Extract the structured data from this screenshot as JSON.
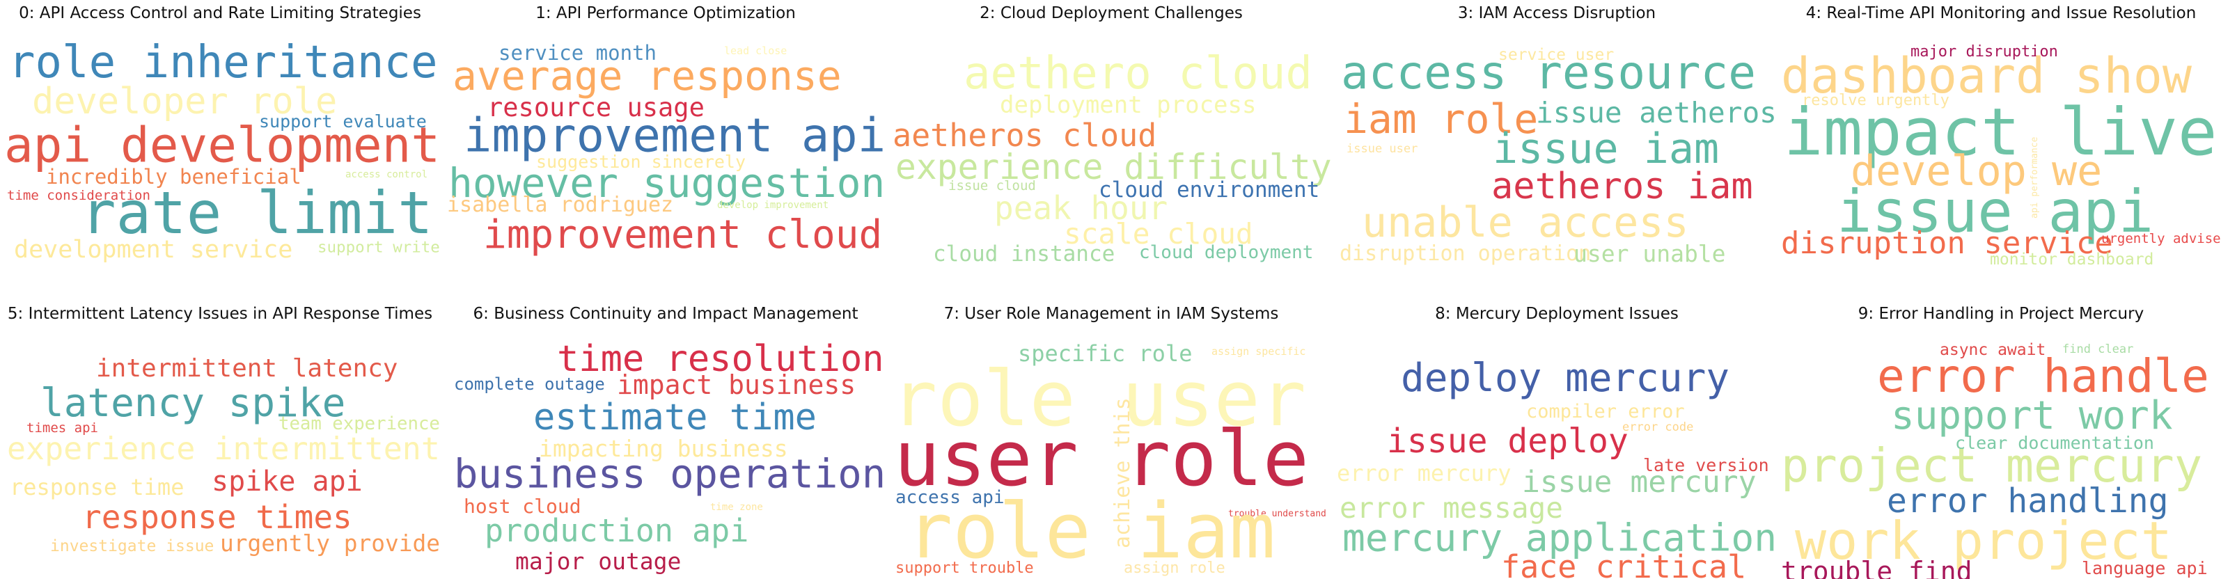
{
  "topics": [
    {
      "title": "0: API Access Control and Rate Limiting Strategies",
      "words": [
        {
          "text": "role inheritance",
          "color": "#3f87b8"
        },
        {
          "text": "developer role",
          "color": "#fdf3b0"
        },
        {
          "text": "api development",
          "color": "#e35a4a"
        },
        {
          "text": "support evaluate",
          "color": "#3f87b8"
        },
        {
          "text": "incredibly beneficial",
          "color": "#f1844f"
        },
        {
          "text": "access control",
          "color": "#d8ec9c"
        },
        {
          "text": "time consideration",
          "color": "#e04a4a"
        },
        {
          "text": "rate limit",
          "color": "#4fa3a6"
        },
        {
          "text": "development service",
          "color": "#fde99a"
        },
        {
          "text": "support write",
          "color": "#d2ec9e"
        }
      ]
    },
    {
      "title": "1: API Performance Optimization",
      "words": [
        {
          "text": "service month",
          "color": "#4f8fc0"
        },
        {
          "text": "lead close",
          "color": "#fef4b6"
        },
        {
          "text": "average response",
          "color": "#fcaa60"
        },
        {
          "text": "resource usage",
          "color": "#d8304a"
        },
        {
          "text": "improvement api",
          "color": "#3e73ad"
        },
        {
          "text": "suggestion sincerely",
          "color": "#fee99a"
        },
        {
          "text": "however suggestion",
          "color": "#65bea4"
        },
        {
          "text": "isabella rodriguez",
          "color": "#fdc980"
        },
        {
          "text": "develop improvement",
          "color": "#d6ee9b"
        },
        {
          "text": "improvement cloud",
          "color": "#e04a4c"
        }
      ]
    },
    {
      "title": "2: Cloud Deployment Challenges",
      "words": [
        {
          "text": "aethero cloud",
          "color": "#f4fab0"
        },
        {
          "text": "deployment process",
          "color": "#f6f7aa"
        },
        {
          "text": "aetheros cloud",
          "color": "#f2874f"
        },
        {
          "text": "experience difficulty",
          "color": "#c8e89e"
        },
        {
          "text": "issue cloud",
          "color": "#c0e2a0"
        },
        {
          "text": "cloud environment",
          "color": "#3d73b0"
        },
        {
          "text": "peak hour",
          "color": "#f0f6b0"
        },
        {
          "text": "scale cloud",
          "color": "#fef0a8"
        },
        {
          "text": "cloud instance",
          "color": "#a8dca4"
        },
        {
          "text": "cloud deployment",
          "color": "#7ccaa6"
        }
      ]
    },
    {
      "title": "3: IAM Access Disruption",
      "words": [
        {
          "text": "service user",
          "color": "#fde8a0"
        },
        {
          "text": "access resource",
          "color": "#5cb8a4"
        },
        {
          "text": "iam role",
          "color": "#f69150"
        },
        {
          "text": "issue aetheros",
          "color": "#5cb8a4"
        },
        {
          "text": "issue user",
          "color": "#fee3a0"
        },
        {
          "text": "issue iam",
          "color": "#5cb8a4"
        },
        {
          "text": "aetheros iam",
          "color": "#d8364c"
        },
        {
          "text": "unable access",
          "color": "#fde6a0"
        },
        {
          "text": "disruption operation",
          "color": "#fde8a6"
        },
        {
          "text": "user unable",
          "color": "#b4e0a2"
        }
      ]
    },
    {
      "title": "4: Real-Time API Monitoring and Issue Resolution",
      "words": [
        {
          "text": "major disruption",
          "color": "#a8185a"
        },
        {
          "text": "dashboard show",
          "color": "#fdd58a"
        },
        {
          "text": "resolve urgently",
          "color": "#fde6a0"
        },
        {
          "text": "impact live",
          "color": "#6ec3a6"
        },
        {
          "text": "api performance",
          "color": "#fce8a6"
        },
        {
          "text": "develop we",
          "color": "#fdc97c"
        },
        {
          "text": "issue api",
          "color": "#6ec3a6"
        },
        {
          "text": "disruption service",
          "color": "#f26b4c"
        },
        {
          "text": "urgently advise",
          "color": "#e84a4a"
        },
        {
          "text": "monitor dashboard",
          "color": "#d2ec9c"
        }
      ]
    },
    {
      "title": "5: Intermittent Latency Issues in API Response Times",
      "words": [
        {
          "text": "intermittent latency",
          "color": "#e35a4a"
        },
        {
          "text": "latency spike",
          "color": "#4fa3a6"
        },
        {
          "text": "team experience",
          "color": "#d8ec9c"
        },
        {
          "text": "times api",
          "color": "#e04a4a"
        },
        {
          "text": "experience intermittent",
          "color": "#fdf3b0"
        },
        {
          "text": "response time",
          "color": "#fde99a"
        },
        {
          "text": "spike api",
          "color": "#e04a4a"
        },
        {
          "text": "response times",
          "color": "#f06a4a"
        },
        {
          "text": "investigate issue",
          "color": "#fdd58a"
        },
        {
          "text": "urgently provide",
          "color": "#f89a56"
        }
      ]
    },
    {
      "title": "6: Business Continuity and Impact Management",
      "words": [
        {
          "text": "time resolution",
          "color": "#d8304a"
        },
        {
          "text": "complete outage",
          "color": "#3e73ad"
        },
        {
          "text": "impact business",
          "color": "#e04a4c"
        },
        {
          "text": "estimate time",
          "color": "#3f87b8"
        },
        {
          "text": "impacting business",
          "color": "#fee99a"
        },
        {
          "text": "business operation",
          "color": "#5b55a0"
        },
        {
          "text": "host cloud",
          "color": "#f26b4c"
        },
        {
          "text": "time zone",
          "color": "#fde6a0"
        },
        {
          "text": "production api",
          "color": "#7ccaa6"
        },
        {
          "text": "major outage",
          "color": "#b81e4a"
        }
      ]
    },
    {
      "title": "7: User Role Management in IAM Systems",
      "words": [
        {
          "text": "specific role",
          "color": "#8cd0a6"
        },
        {
          "text": "assign specific",
          "color": "#fde6a0"
        },
        {
          "text": "role user",
          "color": "#fdf6b8"
        },
        {
          "text": "user role",
          "color": "#c42a4a"
        },
        {
          "text": "access api",
          "color": "#3e73ad"
        },
        {
          "text": "achieve this",
          "color": "#fee6a0"
        },
        {
          "text": "trouble understand",
          "color": "#e04a4a"
        },
        {
          "text": "role iam",
          "color": "#fde69a"
        },
        {
          "text": "support trouble",
          "color": "#f26b4c"
        },
        {
          "text": "assign role",
          "color": "#fde6a8"
        }
      ]
    },
    {
      "title": "8: Mercury Deployment Issues",
      "words": [
        {
          "text": "deploy mercury",
          "color": "#4460a8"
        },
        {
          "text": "compiler error",
          "color": "#fde699"
        },
        {
          "text": "error code",
          "color": "#fdd58a"
        },
        {
          "text": "issue deploy",
          "color": "#d8304a"
        },
        {
          "text": "late version",
          "color": "#e04a4a"
        },
        {
          "text": "error mercury",
          "color": "#fdf2ae"
        },
        {
          "text": "issue mercury",
          "color": "#9ad4a6"
        },
        {
          "text": "error message",
          "color": "#c8e89e"
        },
        {
          "text": "mercury application",
          "color": "#7ccaa6"
        },
        {
          "text": "face critical",
          "color": "#f26b4c"
        }
      ]
    },
    {
      "title": "9: Error Handling in Project Mercury",
      "words": [
        {
          "text": "async await",
          "color": "#e04a4a"
        },
        {
          "text": "find clear",
          "color": "#a8dca4"
        },
        {
          "text": "error handle",
          "color": "#f26b4c"
        },
        {
          "text": "support work",
          "color": "#7ccaa6"
        },
        {
          "text": "clear documentation",
          "color": "#7ccaa6"
        },
        {
          "text": "project mercury",
          "color": "#d8ec9c"
        },
        {
          "text": "error handling",
          "color": "#3e73ad"
        },
        {
          "text": "work project",
          "color": "#fde69a"
        },
        {
          "text": "trouble find",
          "color": "#a8185a"
        },
        {
          "text": "language api",
          "color": "#e04a4a"
        }
      ]
    }
  ]
}
